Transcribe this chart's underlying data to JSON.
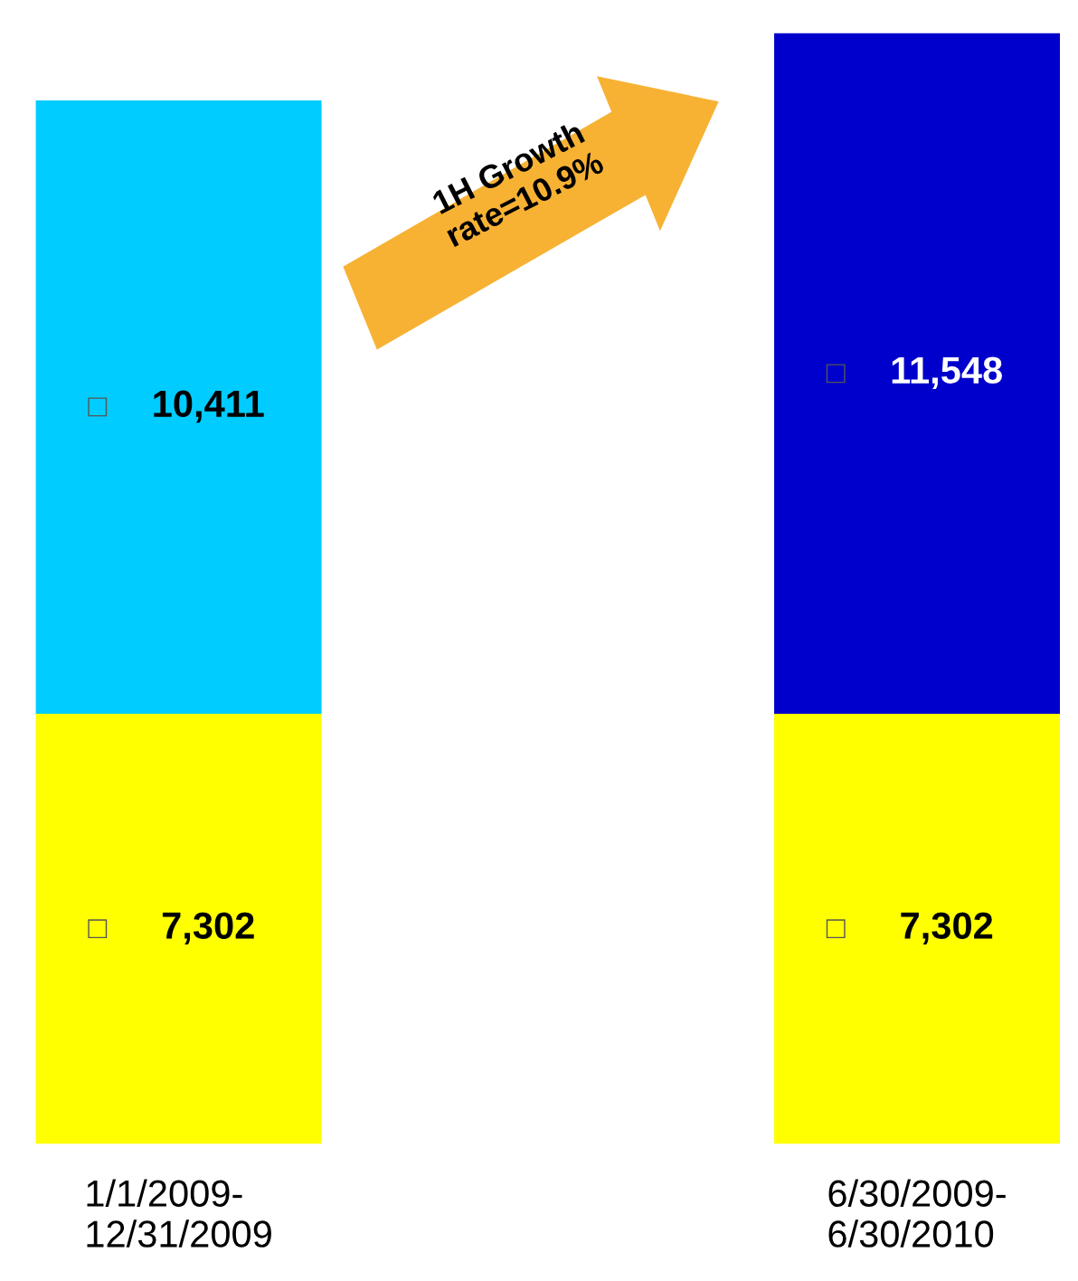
{
  "chart_data": {
    "type": "bar",
    "stacked": true,
    "categories": [
      "1/1/2009-\n12/31/2009",
      "6/30/2009-\n6/30/2010"
    ],
    "series": [
      {
        "color": "#ffff00",
        "values": [
          7302,
          7302
        ],
        "value_labels": [
          "7,302",
          "7,302"
        ]
      },
      {
        "colors": [
          "#00ccff",
          "#0000cc"
        ],
        "values": [
          10411,
          11548
        ],
        "value_labels": [
          "10,411",
          "11,548"
        ]
      }
    ],
    "annotations": [
      "1H Growth\nrate=10.9%"
    ],
    "grid": false,
    "legend": false
  }
}
